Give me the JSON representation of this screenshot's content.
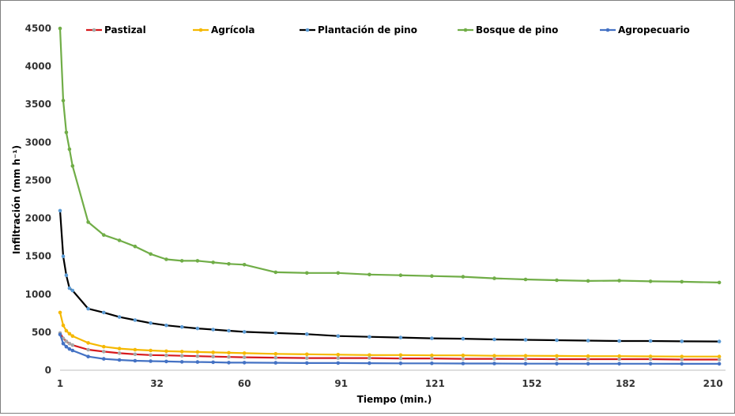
{
  "chart_data": {
    "type": "line",
    "xlabel": "Tiempo (min.)",
    "ylabel": "Infiltración (mm h⁻¹)",
    "xlim": [
      1,
      214
    ],
    "ylim": [
      0,
      4500
    ],
    "yticks": [
      0,
      500,
      1000,
      1500,
      2000,
      2500,
      3000,
      3500,
      4000,
      4500
    ],
    "xticks": [
      1,
      32,
      60,
      91,
      121,
      152,
      182,
      210
    ],
    "grid": false,
    "legend": "top",
    "series": [
      {
        "name": "Pastizal",
        "color": "#d7191c",
        "marker_color": "#a6a6a6",
        "x": [
          1,
          2,
          3,
          4,
          5,
          10,
          15,
          20,
          25,
          30,
          35,
          40,
          45,
          50,
          55,
          60,
          70,
          80,
          90,
          100,
          110,
          120,
          130,
          140,
          150,
          160,
          170,
          180,
          190,
          200,
          212
        ],
        "y": [
          490,
          420,
          380,
          350,
          330,
          270,
          245,
          225,
          210,
          200,
          195,
          190,
          185,
          180,
          175,
          170,
          165,
          160,
          160,
          160,
          155,
          155,
          150,
          150,
          148,
          145,
          145,
          145,
          145,
          140,
          140
        ]
      },
      {
        "name": "Agrícola",
        "color": "#f5b800",
        "marker_color": "#f5b800",
        "x": [
          1,
          2,
          3,
          4,
          5,
          10,
          15,
          20,
          25,
          30,
          35,
          40,
          45,
          50,
          55,
          60,
          70,
          80,
          90,
          100,
          110,
          120,
          130,
          140,
          150,
          160,
          170,
          180,
          190,
          200,
          212
        ],
        "y": [
          760,
          590,
          520,
          480,
          450,
          360,
          310,
          285,
          270,
          260,
          250,
          245,
          240,
          235,
          230,
          225,
          215,
          210,
          205,
          200,
          200,
          195,
          195,
          190,
          190,
          188,
          185,
          185,
          182,
          180,
          180
        ]
      },
      {
        "name": "Plantación de pino",
        "color": "#000000",
        "marker_color": "#5b9bd5",
        "x": [
          1,
          2,
          3,
          4,
          5,
          10,
          15,
          20,
          25,
          30,
          35,
          40,
          45,
          50,
          55,
          60,
          70,
          80,
          90,
          100,
          110,
          120,
          130,
          140,
          150,
          160,
          170,
          180,
          190,
          200,
          212
        ],
        "y": [
          2100,
          1500,
          1250,
          1080,
          1050,
          810,
          760,
          700,
          660,
          620,
          590,
          570,
          550,
          535,
          520,
          505,
          490,
          475,
          450,
          440,
          430,
          420,
          415,
          405,
          400,
          395,
          390,
          385,
          385,
          380,
          378
        ]
      },
      {
        "name": "Bosque de pino",
        "color": "#70ad47",
        "marker_color": "#70ad47",
        "x": [
          1,
          2,
          3,
          4,
          5,
          10,
          15,
          20,
          25,
          30,
          35,
          40,
          45,
          50,
          55,
          60,
          70,
          80,
          90,
          100,
          110,
          120,
          130,
          140,
          150,
          160,
          170,
          180,
          190,
          200,
          212
        ],
        "y": [
          4500,
          3550,
          3130,
          2910,
          2690,
          1950,
          1780,
          1710,
          1630,
          1530,
          1460,
          1440,
          1440,
          1420,
          1400,
          1390,
          1290,
          1280,
          1280,
          1260,
          1250,
          1240,
          1230,
          1210,
          1195,
          1185,
          1175,
          1180,
          1170,
          1165,
          1155
        ]
      },
      {
        "name": "Agropecuario",
        "color": "#4472c4",
        "marker_color": "#4472c4",
        "x": [
          1,
          2,
          3,
          4,
          5,
          10,
          15,
          20,
          25,
          30,
          35,
          40,
          45,
          50,
          55,
          60,
          70,
          80,
          90,
          100,
          110,
          120,
          130,
          140,
          150,
          160,
          170,
          180,
          190,
          200,
          212
        ],
        "y": [
          470,
          350,
          310,
          280,
          260,
          180,
          150,
          135,
          125,
          120,
          115,
          110,
          108,
          105,
          100,
          100,
          98,
          95,
          95,
          92,
          90,
          90,
          88,
          88,
          86,
          86,
          85,
          85,
          85,
          84,
          84
        ]
      }
    ]
  }
}
